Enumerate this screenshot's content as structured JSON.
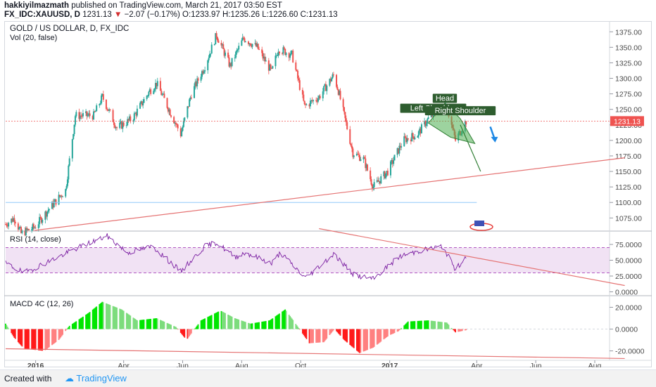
{
  "header": {
    "author": "hakkiyilmazmath",
    "published_text": "published on TradingView.com, March 21, 2017 03:50 EST",
    "symbol": "FX_IDC:XAUUSD, D",
    "last": "1231.13",
    "arrow": "▼",
    "change": "−2.07 (−0.17%)",
    "ohlc": "O:1233.97 H:1235.26 L:1226.60 C:1231.13"
  },
  "footer": {
    "created_label": "Created with",
    "brand": "TradingView"
  },
  "colors": {
    "up": "#26a69a",
    "down": "#ef5350",
    "macd_up": "#00e600",
    "macd_down": "#ff1a1a",
    "rsi": "#7b1fa2",
    "trend": "#e57373",
    "pattern": "#4caf50",
    "label_bg": "#2e5d2f",
    "price_tag": "#ef5350",
    "arrow": "#1e88e5"
  },
  "chart_data": [
    {
      "type": "candlestick",
      "title": "GOLD / US DOLLAR, D, FX_IDC",
      "subtitle": "Vol (20, false)",
      "yticks": [
        "1375.00",
        "1350.00",
        "1325.00",
        "1300.00",
        "1275.00",
        "1250.00",
        "1225.00",
        "1200.00",
        "1175.00",
        "1150.00",
        "1125.00",
        "1100.00",
        "1075.00"
      ],
      "ylim": [
        1055,
        1390
      ],
      "xticks": [
        "2016",
        "Apr",
        "Jun",
        "Aug",
        "Oct",
        "2017",
        "Apr",
        "Jun",
        "Aug"
      ],
      "last_price": "1231.13",
      "price_path": [
        [
          "2015-12-01",
          1065
        ],
        [
          "2015-12-10",
          1075
        ],
        [
          "2015-12-17",
          1050
        ],
        [
          "2015-12-31",
          1060
        ],
        [
          "2016-01-15",
          1090
        ],
        [
          "2016-02-01",
          1120
        ],
        [
          "2016-02-11",
          1240
        ],
        [
          "2016-03-01",
          1240
        ],
        [
          "2016-03-10",
          1270
        ],
        [
          "2016-03-25",
          1220
        ],
        [
          "2016-04-10",
          1235
        ],
        [
          "2016-04-28",
          1280
        ],
        [
          "2016-05-05",
          1292
        ],
        [
          "2016-05-30",
          1210
        ],
        [
          "2016-06-10",
          1275
        ],
        [
          "2016-06-24",
          1320
        ],
        [
          "2016-07-06",
          1370
        ],
        [
          "2016-07-20",
          1320
        ],
        [
          "2016-08-03",
          1365
        ],
        [
          "2016-08-17",
          1350
        ],
        [
          "2016-09-01",
          1310
        ],
        [
          "2016-09-08",
          1348
        ],
        [
          "2016-09-22",
          1338
        ],
        [
          "2016-10-05",
          1255
        ],
        [
          "2016-10-20",
          1270
        ],
        [
          "2016-11-04",
          1305
        ],
        [
          "2016-11-09",
          1280
        ],
        [
          "2016-11-24",
          1180
        ],
        [
          "2016-12-05",
          1170
        ],
        [
          "2016-12-15",
          1125
        ],
        [
          "2016-12-30",
          1150
        ],
        [
          "2017-01-15",
          1200
        ],
        [
          "2017-01-30",
          1210
        ],
        [
          "2017-02-10",
          1235
        ],
        [
          "2017-02-22",
          1250
        ],
        [
          "2017-03-01",
          1255
        ],
        [
          "2017-03-06",
          1225
        ],
        [
          "2017-03-10",
          1200
        ],
        [
          "2017-03-21",
          1231
        ]
      ],
      "annotations": [
        {
          "text": "Head",
          "x": "2017-02-27",
          "y": 1265
        },
        {
          "text": "Left Shoulder",
          "x": "2017-02-15",
          "y": 1249
        },
        {
          "text": "Right Shoulder",
          "x": "2017-03-15",
          "y": 1245
        }
      ],
      "trendlines": [
        {
          "from": [
            "2015-12-31",
            1055
          ],
          "to": [
            "2017-09-01",
            1172
          ]
        },
        {
          "from": [
            "2017-03-15",
            1225
          ],
          "to": [
            "2017-04-05",
            1150
          ]
        }
      ],
      "pattern_fill": [
        [
          "2017-02-10",
          1228
        ],
        [
          "2017-02-27",
          1260
        ],
        [
          "2017-03-15",
          1235
        ],
        [
          "2017-03-30",
          1195
        ],
        [
          "2017-03-05",
          1205
        ]
      ],
      "reference_line": {
        "y": 1100,
        "from": "2015-12-01",
        "to": "2017-04-01"
      },
      "forecast_arrow": {
        "from": [
          "2017-04-15",
          1222
        ],
        "to": [
          "2017-04-20",
          1200
        ]
      }
    },
    {
      "type": "line",
      "title": "RSI (14, close)",
      "yticks": [
        "75.0000",
        "50.0000",
        "25.0000",
        "0.0000"
      ],
      "ylim": [
        -5,
        95
      ],
      "band": [
        30,
        70
      ],
      "series_path": [
        [
          "2015-12-01",
          45
        ],
        [
          "2015-12-20",
          30
        ],
        [
          "2016-01-20",
          52
        ],
        [
          "2016-02-11",
          68
        ],
        [
          "2016-03-01",
          80
        ],
        [
          "2016-03-15",
          88
        ],
        [
          "2016-04-05",
          62
        ],
        [
          "2016-05-01",
          72
        ],
        [
          "2016-05-30",
          32
        ],
        [
          "2016-06-24",
          72
        ],
        [
          "2016-07-06",
          78
        ],
        [
          "2016-07-25",
          55
        ],
        [
          "2016-08-05",
          62
        ],
        [
          "2016-09-01",
          45
        ],
        [
          "2016-09-10",
          62
        ],
        [
          "2016-10-06",
          22
        ],
        [
          "2016-11-04",
          60
        ],
        [
          "2016-11-25",
          27
        ],
        [
          "2016-12-15",
          20
        ],
        [
          "2017-01-10",
          55
        ],
        [
          "2017-02-01",
          65
        ],
        [
          "2017-02-25",
          72
        ],
        [
          "2017-03-10",
          35
        ],
        [
          "2017-03-21",
          56
        ]
      ],
      "trendline": {
        "from": [
          "2016-10-20",
          100
        ],
        "to": [
          "2017-09-01",
          10
        ]
      }
    },
    {
      "type": "bar",
      "title": "MACD 4C (12, 26)",
      "yticks": [
        "20.0000",
        "0.0000",
        "-20.0000"
      ],
      "ylim": [
        -28,
        30
      ],
      "histogram_path": [
        [
          "2015-12-01",
          5
        ],
        [
          "2015-12-10",
          -8
        ],
        [
          "2015-12-20",
          -18
        ],
        [
          "2016-01-10",
          -20
        ],
        [
          "2016-01-25",
          -10
        ],
        [
          "2016-02-05",
          3
        ],
        [
          "2016-02-25",
          15
        ],
        [
          "2016-03-10",
          25
        ],
        [
          "2016-03-30",
          18
        ],
        [
          "2016-04-15",
          8
        ],
        [
          "2016-05-05",
          10
        ],
        [
          "2016-05-25",
          2
        ],
        [
          "2016-06-05",
          -10
        ],
        [
          "2016-06-20",
          8
        ],
        [
          "2016-07-10",
          17
        ],
        [
          "2016-07-25",
          10
        ],
        [
          "2016-08-10",
          5
        ],
        [
          "2016-08-30",
          8
        ],
        [
          "2016-09-15",
          18
        ],
        [
          "2016-09-25",
          6
        ],
        [
          "2016-10-10",
          -13
        ],
        [
          "2016-10-25",
          -12
        ],
        [
          "2016-11-05",
          0
        ],
        [
          "2016-11-15",
          -10
        ],
        [
          "2016-12-01",
          -22
        ],
        [
          "2016-12-15",
          -17
        ],
        [
          "2016-12-31",
          -6
        ],
        [
          "2017-01-10",
          -2
        ],
        [
          "2017-01-20",
          7
        ],
        [
          "2017-02-10",
          8
        ],
        [
          "2017-03-01",
          6
        ],
        [
          "2017-03-10",
          -3
        ],
        [
          "2017-03-21",
          -1
        ]
      ],
      "trendline": {
        "from": [
          "2015-12-01",
          -18
        ],
        "to": [
          "2017-09-01",
          -27
        ]
      }
    }
  ]
}
